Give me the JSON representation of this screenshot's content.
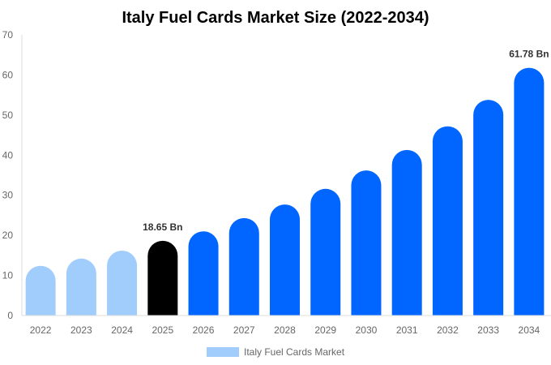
{
  "chart_data": {
    "type": "bar",
    "title": "Italy Fuel Cards Market Size (2022-2034)",
    "xlabel": "",
    "ylabel": "",
    "ylim": [
      0,
      70
    ],
    "yticks": [
      "0",
      "10",
      "20",
      "30",
      "40",
      "50",
      "60",
      "70"
    ],
    "grid": false,
    "legend_position": "bottom",
    "categories": [
      "2022",
      "2023",
      "2024",
      "2025",
      "2026",
      "2027",
      "2028",
      "2029",
      "2030",
      "2031",
      "2032",
      "2033",
      "2034"
    ],
    "series": [
      {
        "name": "Italy Fuel Cards Market",
        "values": [
          12.4,
          14.2,
          16.2,
          18.65,
          21.0,
          24.3,
          27.7,
          31.6,
          36.2,
          41.3,
          47.2,
          53.8,
          61.78
        ],
        "colors": [
          "#a0cdfc",
          "#a0cdfc",
          "#a0cdfc",
          "#000000",
          "#0066ff",
          "#0066ff",
          "#0066ff",
          "#0066ff",
          "#0066ff",
          "#0066ff",
          "#0066ff",
          "#0066ff",
          "#0066ff"
        ]
      }
    ],
    "data_labels": [
      {
        "category": "2025",
        "text": "18.65 Bn"
      },
      {
        "category": "2034",
        "text": "61.78 Bn"
      }
    ],
    "legend_color": "#a0cdfc"
  }
}
